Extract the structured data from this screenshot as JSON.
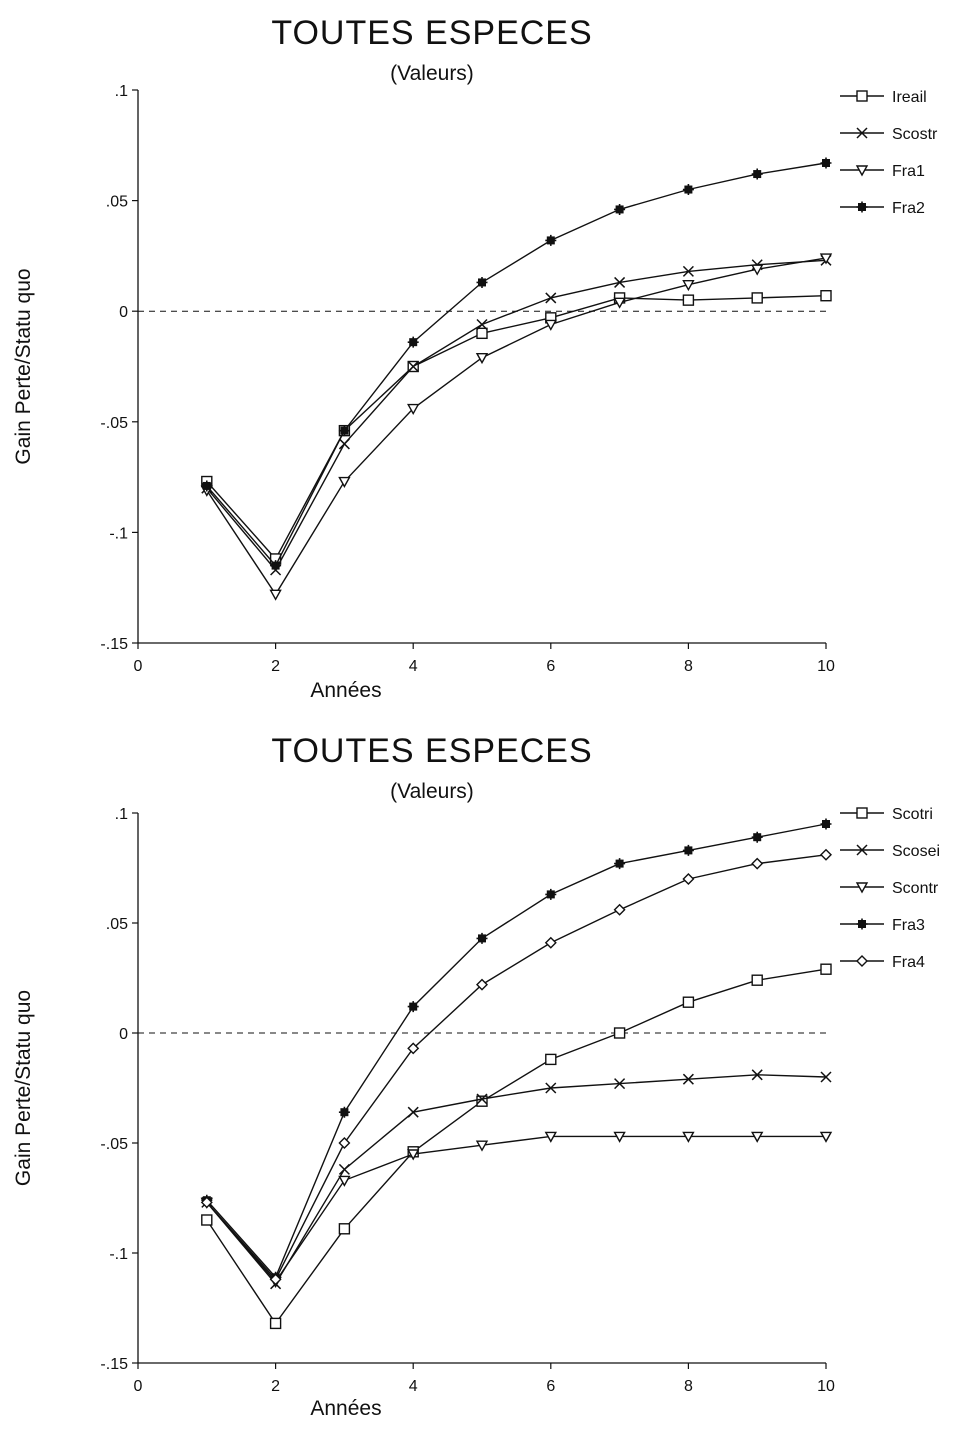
{
  "chart_data": [
    {
      "type": "line",
      "title": "TOUTES ESPECES",
      "subtitle": "(Valeurs)",
      "xlabel": "Années",
      "ylabel": "Gain Perte/Statu  quo",
      "xlim": [
        0,
        10
      ],
      "ylim": [
        -0.15,
        0.1
      ],
      "x_ticks": [
        0,
        2,
        4,
        6,
        8,
        10
      ],
      "x_tick_labels": [
        "0",
        "2",
        "4",
        "6",
        "8",
        "10"
      ],
      "y_ticks": [
        0.1,
        0.05,
        0,
        -0.05,
        -0.1,
        -0.15
      ],
      "y_tick_labels": [
        ".1",
        ".05",
        "0",
        "-.05",
        "-.1",
        "-.15"
      ],
      "reference_line": {
        "y": 0,
        "style": "dashed"
      },
      "grid": false,
      "legend_position": "top-right",
      "x": [
        1,
        2,
        3,
        4,
        5,
        6,
        7,
        8,
        9,
        10
      ],
      "series": [
        {
          "name": "Ireail",
          "marker": "square",
          "values": [
            -0.077,
            -0.112,
            -0.054,
            -0.025,
            -0.01,
            -0.003,
            0.006,
            0.005,
            0.006,
            0.007
          ]
        },
        {
          "name": "Scostr",
          "marker": "x",
          "values": [
            -0.08,
            -0.117,
            -0.06,
            -0.025,
            -0.006,
            0.006,
            0.013,
            0.018,
            0.021,
            0.023
          ]
        },
        {
          "name": "Fra1",
          "marker": "triangle-down",
          "values": [
            -0.081,
            -0.128,
            -0.077,
            -0.044,
            -0.021,
            -0.006,
            0.004,
            0.012,
            0.019,
            0.024
          ]
        },
        {
          "name": "Fra2",
          "marker": "star",
          "values": [
            -0.079,
            -0.115,
            -0.054,
            -0.014,
            0.013,
            0.032,
            0.046,
            0.055,
            0.062,
            0.067
          ]
        }
      ]
    },
    {
      "type": "line",
      "title": "TOUTES ESPECES",
      "subtitle": "(Valeurs)",
      "xlabel": "Années",
      "ylabel": "Gain Perte/Statu  quo",
      "xlim": [
        0,
        10
      ],
      "ylim": [
        -0.15,
        0.1
      ],
      "x_ticks": [
        0,
        2,
        4,
        6,
        8,
        10
      ],
      "x_tick_labels": [
        "0",
        "2",
        "4",
        "6",
        "8",
        "10"
      ],
      "y_ticks": [
        0.1,
        0.05,
        0,
        -0.05,
        -0.1,
        -0.15
      ],
      "y_tick_labels": [
        ".1",
        ".05",
        "0",
        "-.05",
        "-.1",
        "-.15"
      ],
      "reference_line": {
        "y": 0,
        "style": "dashed"
      },
      "grid": false,
      "legend_position": "top-right",
      "x": [
        1,
        2,
        3,
        4,
        5,
        6,
        7,
        8,
        9,
        10
      ],
      "series": [
        {
          "name": "Scotri",
          "marker": "square",
          "values": [
            -0.085,
            -0.132,
            -0.089,
            -0.054,
            -0.031,
            -0.012,
            0.0,
            0.014,
            0.024,
            0.029
          ]
        },
        {
          "name": "Scosei",
          "marker": "x",
          "values": [
            -0.077,
            -0.114,
            -0.062,
            -0.036,
            -0.03,
            -0.025,
            -0.023,
            -0.021,
            -0.019,
            -0.02
          ]
        },
        {
          "name": "Scontr",
          "marker": "triangle-down",
          "values": [
            -0.077,
            -0.113,
            -0.067,
            -0.055,
            -0.051,
            -0.047,
            -0.047,
            -0.047,
            -0.047,
            -0.047
          ]
        },
        {
          "name": "Fra3",
          "marker": "star",
          "values": [
            -0.076,
            -0.111,
            -0.036,
            0.012,
            0.043,
            0.063,
            0.077,
            0.083,
            0.089,
            0.095
          ]
        },
        {
          "name": "Fra4",
          "marker": "diamond",
          "values": [
            -0.077,
            -0.112,
            -0.05,
            -0.007,
            0.022,
            0.041,
            0.056,
            0.07,
            0.077,
            0.081
          ]
        }
      ]
    }
  ]
}
